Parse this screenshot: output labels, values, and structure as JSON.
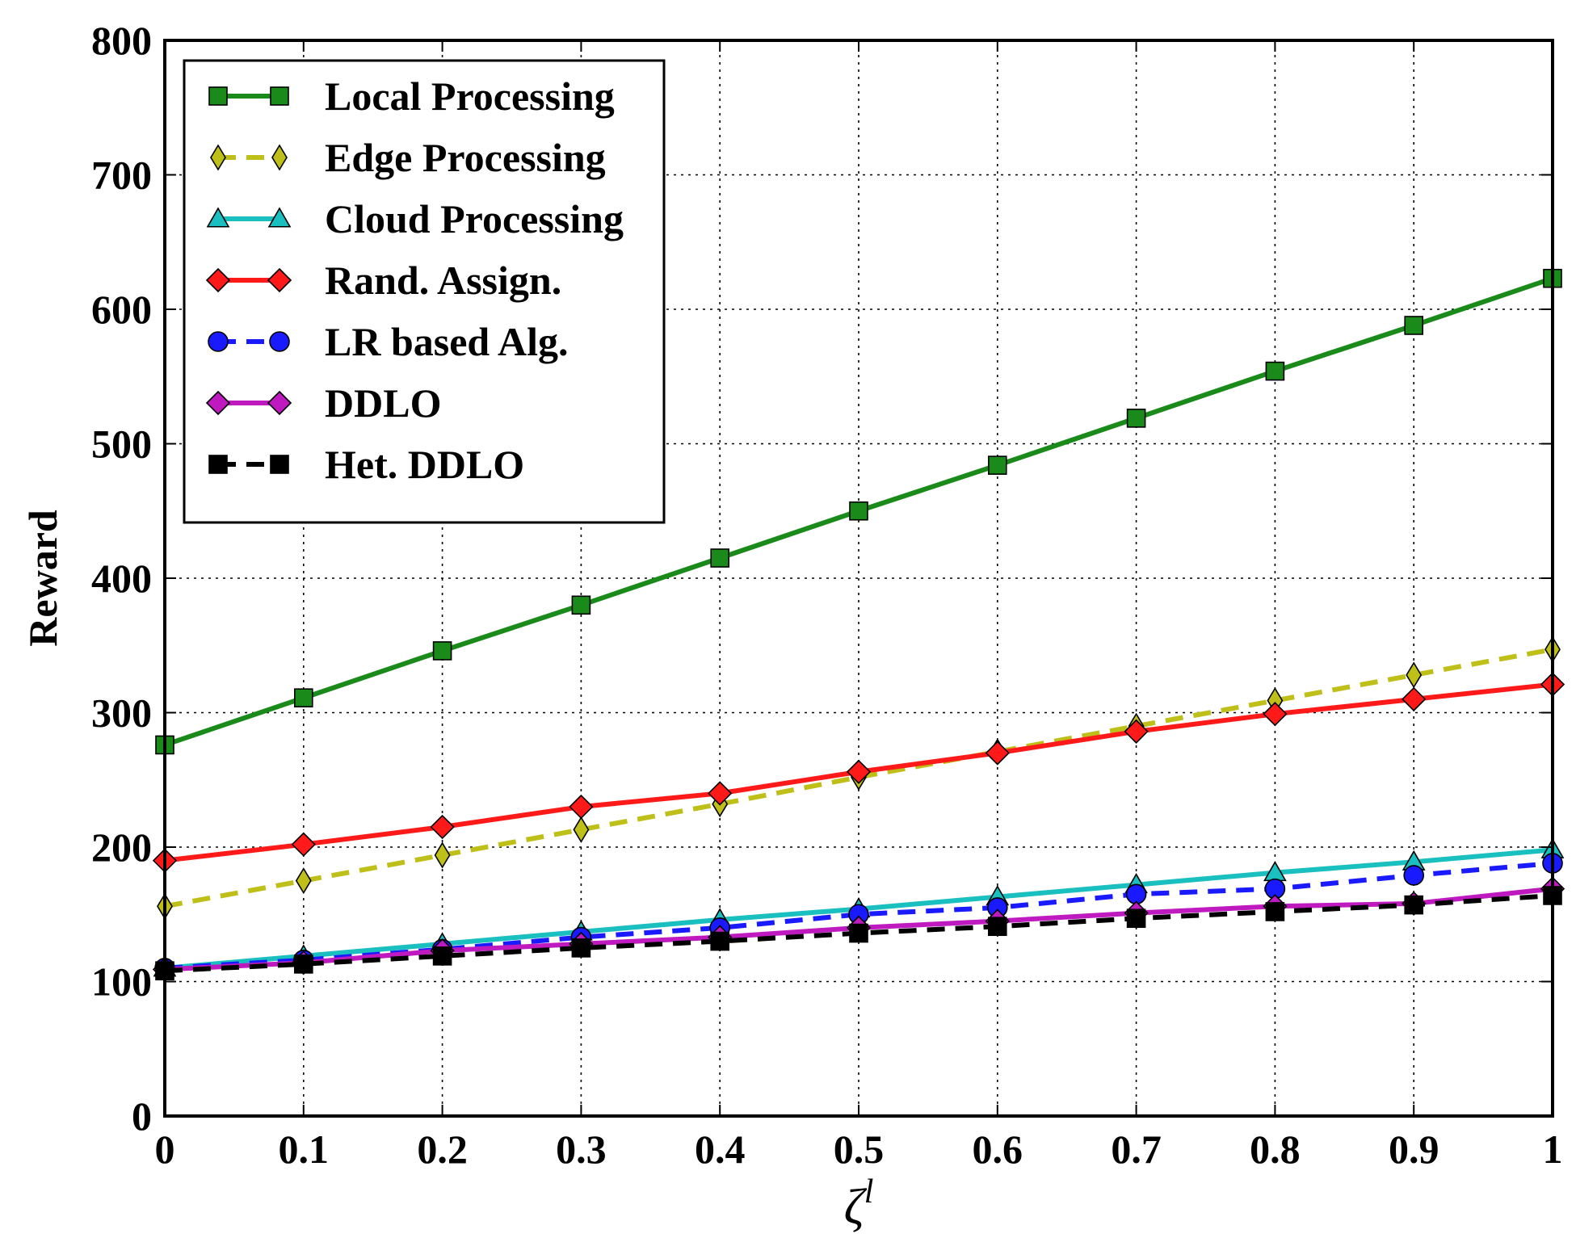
{
  "chart_data": {
    "type": "line",
    "title": "",
    "xlabel_symbol": "ζ",
    "xlabel_superscript": "l",
    "ylabel": "Reward",
    "xlim": [
      0,
      1
    ],
    "ylim": [
      0,
      800
    ],
    "grid": true,
    "legend_position": "top-left",
    "x": [
      0,
      0.1,
      0.2,
      0.3,
      0.4,
      0.5,
      0.6,
      0.7,
      0.8,
      0.9,
      1
    ],
    "x_tick_labels": [
      "0",
      "0.1",
      "0.2",
      "0.3",
      "0.4",
      "0.5",
      "0.6",
      "0.7",
      "0.8",
      "0.9",
      "1"
    ],
    "y_ticks": [
      0,
      100,
      200,
      300,
      400,
      500,
      600,
      700,
      800
    ],
    "y_tick_labels": [
      "0",
      "100",
      "200",
      "300",
      "400",
      "500",
      "600",
      "700",
      "800"
    ],
    "series": [
      {
        "name": "Local Processing",
        "color": "#1a8a1a",
        "dash": "solid",
        "marker": "square",
        "values": [
          276,
          311,
          346,
          380,
          415,
          450,
          484,
          519,
          554,
          588,
          623
        ]
      },
      {
        "name": "Edge Processing",
        "color": "#bfbf1a",
        "dash": "dashed",
        "marker": "thin-diamond",
        "values": [
          156,
          175,
          194,
          213,
          232,
          252,
          271,
          290,
          309,
          328,
          347
        ]
      },
      {
        "name": "Cloud Processing",
        "color": "#1abfbf",
        "dash": "solid",
        "marker": "triangle",
        "values": [
          110,
          119,
          128,
          137,
          146,
          154,
          163,
          172,
          181,
          189,
          198
        ]
      },
      {
        "name": "Rand. Assign.",
        "color": "#ff1a1a",
        "dash": "solid",
        "marker": "diamond",
        "values": [
          190,
          202,
          215,
          230,
          240,
          256,
          270,
          286,
          299,
          310,
          321
        ]
      },
      {
        "name": "LR based Alg.",
        "color": "#1a1aff",
        "dash": "dashed",
        "marker": "circle",
        "values": [
          110,
          116,
          124,
          133,
          140,
          150,
          155,
          165,
          169,
          179,
          188
        ]
      },
      {
        "name": "DDLO",
        "color": "#bf1abf",
        "dash": "solid",
        "marker": "diamond",
        "values": [
          109,
          114,
          123,
          128,
          133,
          140,
          145,
          151,
          156,
          158,
          169
        ]
      },
      {
        "name": "Het. DDLO",
        "color": "#000000",
        "dash": "dashed",
        "marker": "square",
        "values": [
          108,
          113,
          119,
          125,
          130,
          136,
          141,
          147,
          152,
          157,
          164
        ]
      }
    ]
  }
}
